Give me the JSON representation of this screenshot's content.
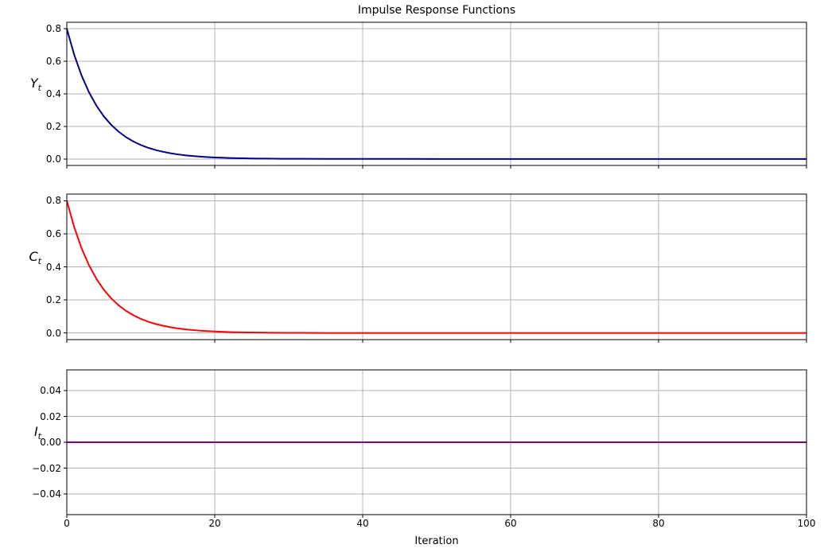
{
  "page": {
    "title": "Impulse Response Functions",
    "xlabel": "Iteration"
  },
  "colors": {
    "grid": "#b0b0b0",
    "spine": "#000000",
    "text": "#000000"
  },
  "chart_data": [
    {
      "type": "line",
      "name": "output-irf",
      "ylabel": {
        "base": "Y",
        "sub": "t"
      },
      "line_color": "#00008B",
      "grid": true,
      "xlim": [
        0,
        100
      ],
      "ylim": [
        -0.04,
        0.84
      ],
      "xticks": [
        0,
        20,
        40,
        60,
        80,
        100
      ],
      "xtick_labels": [
        "0",
        "20",
        "40",
        "60",
        "80",
        "100"
      ],
      "show_xtick_labels": false,
      "yticks": [
        0.0,
        0.2,
        0.4,
        0.6,
        0.8
      ],
      "ytick_labels": [
        "0.0",
        "0.2",
        "0.4",
        "0.6",
        "0.8"
      ],
      "x": [
        0,
        1,
        2,
        3,
        4,
        5,
        6,
        7,
        8,
        9,
        10,
        11,
        12,
        13,
        14,
        15,
        16,
        17,
        18,
        19,
        20,
        21,
        22,
        23,
        24,
        25,
        26,
        27,
        28,
        29,
        30,
        35,
        40,
        50,
        60,
        70,
        80,
        90,
        100
      ],
      "y": [
        0.8,
        0.64,
        0.512,
        0.4096,
        0.3277,
        0.2621,
        0.2097,
        0.1678,
        0.1342,
        0.1074,
        0.0859,
        0.0687,
        0.055,
        0.044,
        0.0352,
        0.0281,
        0.0225,
        0.018,
        0.0144,
        0.0115,
        0.0092,
        0.0074,
        0.0059,
        0.0047,
        0.0038,
        0.003,
        0.0024,
        0.0019,
        0.0015,
        0.0012,
        0.001,
        0.0003,
        0.0001,
        0,
        0,
        0,
        0,
        0,
        0
      ]
    },
    {
      "type": "line",
      "name": "consumption-irf",
      "ylabel": {
        "base": "C",
        "sub": "t"
      },
      "line_color": "#FF0000",
      "grid": true,
      "xlim": [
        0,
        100
      ],
      "ylim": [
        -0.04,
        0.84
      ],
      "xticks": [
        0,
        20,
        40,
        60,
        80,
        100
      ],
      "xtick_labels": [
        "0",
        "20",
        "40",
        "60",
        "80",
        "100"
      ],
      "show_xtick_labels": false,
      "yticks": [
        0.0,
        0.2,
        0.4,
        0.6,
        0.8
      ],
      "ytick_labels": [
        "0.0",
        "0.2",
        "0.4",
        "0.6",
        "0.8"
      ],
      "x": [
        0,
        1,
        2,
        3,
        4,
        5,
        6,
        7,
        8,
        9,
        10,
        11,
        12,
        13,
        14,
        15,
        16,
        17,
        18,
        19,
        20,
        21,
        22,
        23,
        24,
        25,
        26,
        27,
        28,
        29,
        30,
        35,
        40,
        50,
        60,
        70,
        80,
        90,
        100
      ],
      "y": [
        0.8,
        0.64,
        0.512,
        0.4096,
        0.3277,
        0.2621,
        0.2097,
        0.1678,
        0.1342,
        0.1074,
        0.0859,
        0.0687,
        0.055,
        0.044,
        0.0352,
        0.0281,
        0.0225,
        0.018,
        0.0144,
        0.0115,
        0.0092,
        0.0074,
        0.0059,
        0.0047,
        0.0038,
        0.003,
        0.0024,
        0.0019,
        0.0015,
        0.0012,
        0.001,
        0.0003,
        0.0001,
        0,
        0,
        0,
        0,
        0,
        0
      ]
    },
    {
      "type": "line",
      "name": "investment-irf",
      "ylabel": {
        "base": "I",
        "sub": "t"
      },
      "line_color": "#800080",
      "grid": true,
      "xlim": [
        0,
        100
      ],
      "ylim": [
        -0.056,
        0.056
      ],
      "xticks": [
        0,
        20,
        40,
        60,
        80,
        100
      ],
      "xtick_labels": [
        "0",
        "20",
        "40",
        "60",
        "80",
        "100"
      ],
      "show_xtick_labels": true,
      "yticks": [
        0.04,
        0.02,
        0.0,
        -0.02,
        -0.04
      ],
      "ytick_labels": [
        "0.04",
        "0.02",
        "0.00",
        "−0.02",
        "−0.04"
      ],
      "x": [
        0,
        100
      ],
      "y": [
        0,
        0
      ]
    }
  ]
}
